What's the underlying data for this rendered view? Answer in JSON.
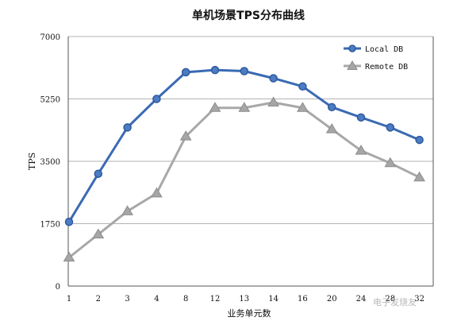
{
  "chart_data": {
    "type": "line",
    "title": "单机场景TPS分布曲线",
    "xlabel": "业务单元数",
    "ylabel": "TPS",
    "categories": [
      "1",
      "2",
      "3",
      "4",
      "8",
      "12",
      "13",
      "14",
      "16",
      "20",
      "24",
      "28",
      "32"
    ],
    "yticks": [
      "0",
      "1750",
      "3500",
      "5250",
      "7000"
    ],
    "ylim": [
      0,
      7000
    ],
    "grid": true,
    "legend_position": "top-right",
    "series": [
      {
        "name": "Local DB",
        "color": "#3a6ab3",
        "marker": "circle",
        "values": [
          1800,
          3150,
          4450,
          5250,
          6000,
          6060,
          6030,
          5830,
          5600,
          5020,
          4730,
          4450,
          4100
        ]
      },
      {
        "name": "Remote DB",
        "color": "#a8a8a8",
        "marker": "triangle",
        "values": [
          800,
          1450,
          2100,
          2600,
          4200,
          5000,
          5000,
          5150,
          5000,
          4400,
          3800,
          3450,
          3050
        ]
      }
    ]
  },
  "watermark": "电子发烧友"
}
